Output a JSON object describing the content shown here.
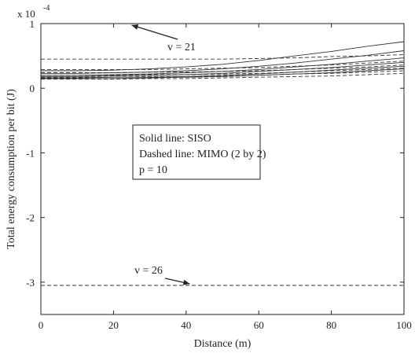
{
  "chart_data": {
    "type": "line",
    "xlabel": "Distance (m)",
    "ylabel": "Total energy consumption per bit (J)",
    "y_scale_label": "x 10",
    "y_scale_exponent": "-4",
    "xlim": [
      0,
      100
    ],
    "ylim": [
      -3.5,
      1
    ],
    "grid": false,
    "xticks": [
      "0",
      "20",
      "40",
      "60",
      "80",
      "100"
    ],
    "yticks": [
      "-3",
      "-2",
      "-1",
      "0",
      "1"
    ],
    "x": [
      0,
      10,
      20,
      30,
      40,
      50,
      60,
      70,
      80,
      90,
      100
    ],
    "series": [
      {
        "style": "solid",
        "values": [
          0.27,
          0.27,
          0.28,
          0.3,
          0.33,
          0.37,
          0.43,
          0.5,
          0.57,
          0.65,
          0.72
        ]
      },
      {
        "style": "solid",
        "values": [
          0.23,
          0.23,
          0.24,
          0.25,
          0.27,
          0.3,
          0.34,
          0.39,
          0.45,
          0.51,
          0.58
        ]
      },
      {
        "style": "solid",
        "values": [
          0.2,
          0.2,
          0.21,
          0.22,
          0.24,
          0.26,
          0.29,
          0.33,
          0.37,
          0.42,
          0.47
        ]
      },
      {
        "style": "solid",
        "values": [
          0.18,
          0.18,
          0.19,
          0.2,
          0.21,
          0.23,
          0.26,
          0.29,
          0.32,
          0.36,
          0.4
        ]
      },
      {
        "style": "solid",
        "values": [
          0.16,
          0.16,
          0.17,
          0.17,
          0.18,
          0.2,
          0.22,
          0.25,
          0.28,
          0.31,
          0.34
        ]
      },
      {
        "style": "solid",
        "values": [
          0.15,
          0.15,
          0.15,
          0.16,
          0.17,
          0.18,
          0.2,
          0.22,
          0.24,
          0.27,
          0.3
        ]
      },
      {
        "style": "dashed",
        "values": [
          1.0,
          1.0,
          1.0,
          1.0,
          1.0,
          1.0,
          1.0,
          1.0,
          1.0,
          1.0,
          1.0
        ]
      },
      {
        "style": "dashed",
        "values": [
          0.45,
          0.45,
          0.45,
          0.45,
          0.45,
          0.45,
          0.46,
          0.47,
          0.49,
          0.5,
          0.52
        ]
      },
      {
        "style": "dashed",
        "values": [
          0.29,
          0.29,
          0.29,
          0.29,
          0.3,
          0.31,
          0.32,
          0.34,
          0.36,
          0.39,
          0.42
        ]
      },
      {
        "style": "dashed",
        "values": [
          0.24,
          0.24,
          0.24,
          0.25,
          0.25,
          0.26,
          0.27,
          0.29,
          0.31,
          0.33,
          0.36
        ]
      },
      {
        "style": "dashed",
        "values": [
          0.2,
          0.2,
          0.2,
          0.21,
          0.21,
          0.22,
          0.23,
          0.25,
          0.27,
          0.29,
          0.31
        ]
      },
      {
        "style": "dashed",
        "values": [
          0.17,
          0.17,
          0.17,
          0.18,
          0.18,
          0.19,
          0.2,
          0.22,
          0.23,
          0.25,
          0.27
        ]
      },
      {
        "style": "dashed",
        "values": [
          0.14,
          0.14,
          0.14,
          0.15,
          0.15,
          0.16,
          0.17,
          0.18,
          0.19,
          0.21,
          0.23
        ]
      },
      {
        "style": "dashed",
        "values": [
          -3.05,
          -3.05,
          -3.05,
          -3.05,
          -3.05,
          -3.05,
          -3.05,
          -3.05,
          -3.05,
          -3.05,
          -3.05
        ]
      }
    ],
    "annotations": [
      {
        "text": "v = 21",
        "target": [
          25,
          1.0
        ]
      },
      {
        "text": "v = 26",
        "target": [
          41,
          -3.05
        ]
      }
    ],
    "legend_box": [
      "Solid line: SISO",
      "Dashed line: MIMO (2 by 2)",
      "p = 10"
    ]
  }
}
